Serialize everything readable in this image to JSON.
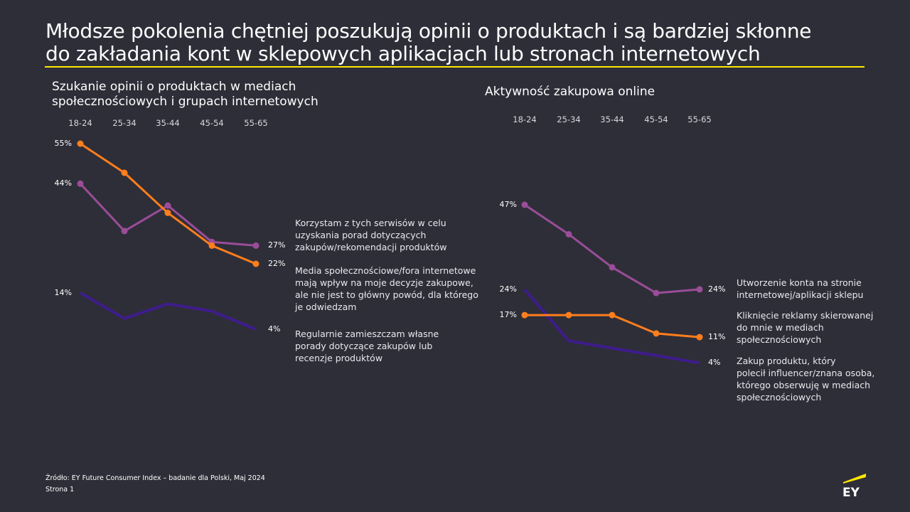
{
  "header": {
    "title_line1": "Młodsze pokolenia chętniej poszukują opinii o produktach i są bardziej skłonne",
    "title_line2": "do zakładania kont w sklepowych aplikacjach lub stronach internetowych"
  },
  "colors": {
    "background": "#2e2e38",
    "accent_yellow": "#ffe600",
    "orange": "#ff7e1d",
    "purple": "#9a4d98",
    "dark_purple": "#3e1c8c"
  },
  "chart_data": [
    {
      "type": "line",
      "title_line1": "Szukanie opinii o produktach w mediach",
      "title_line2": "społecznościowych i grupach internetowych",
      "categories": [
        "18-24",
        "25-34",
        "35-44",
        "45-54",
        "55-65"
      ],
      "xlabel": "",
      "ylabel": "",
      "ylim": [
        0,
        60
      ],
      "grid": false,
      "series": [
        {
          "name": "Korzystam z tych serwisów w celu uzyskania porad dotyczących zakupów/rekomendacji produktów",
          "legend_lines": [
            "Korzystam z tych serwisów w celu",
            "uzyskania porad dotyczących",
            "zakupów/rekomendacji produktów"
          ],
          "color_key": "purple",
          "markers": true,
          "values": [
            44,
            31,
            38,
            28,
            27
          ],
          "start_label": "44%",
          "end_label": "27%"
        },
        {
          "name": "Media społecznościowe/fora internetowe mają wpływ na moje decyzje zakupowe, ale nie jest to główny powód, dla którego je odwiedzam",
          "legend_lines": [
            "Media społecznościowe/fora internetowe",
            "mają wpływ na moje decyzje zakupowe,",
            "ale nie jest to główny powód, dla którego",
            "je odwiedzam"
          ],
          "color_key": "orange",
          "markers": true,
          "values": [
            55,
            47,
            36,
            27,
            22
          ],
          "start_label": "55%",
          "end_label": "22%"
        },
        {
          "name": "Regularnie zamieszczam własne porady dotyczące zakupów lub recenzje produktów",
          "legend_lines": [
            "Regularnie zamieszczam własne",
            "porady dotyczące zakupów lub",
            "recenzje produktów"
          ],
          "color_key": "dark_purple",
          "markers": false,
          "values": [
            14,
            7,
            11,
            9,
            4
          ],
          "start_label": "14%",
          "end_label": "4%"
        }
      ]
    },
    {
      "type": "line",
      "title_line1": "Aktywność zakupowa online",
      "title_line2": "",
      "categories": [
        "18-24",
        "25-34",
        "35-44",
        "45-54",
        "55-65"
      ],
      "xlabel": "",
      "ylabel": "",
      "ylim": [
        0,
        60
      ],
      "grid": false,
      "series": [
        {
          "name": "Utworzenie konta na stronie internetowej/aplikacji sklepu",
          "legend_lines": [
            "Utworzenie konta na stronie",
            "internetowej/aplikacji sklepu"
          ],
          "color_key": "purple",
          "markers": true,
          "values": [
            47,
            39,
            30,
            23,
            24
          ],
          "start_label": "47%",
          "end_label": "24%"
        },
        {
          "name": "Kliknięcie reklamy skierowanej do mnie w mediach społecznościowych",
          "legend_lines": [
            "Kliknięcie reklamy skierowanej",
            "do mnie w mediach",
            "społecznościowych"
          ],
          "color_key": "orange",
          "markers": true,
          "values": [
            17,
            17,
            17,
            12,
            11
          ],
          "start_label": "17%",
          "end_label": "11%"
        },
        {
          "name": "Zakup produktu, który polecił influencer/znana osoba, którego obserwuję w mediach społecznościowych",
          "legend_lines": [
            "Zakup produktu, który",
            "polecił influencer/znana osoba,",
            "którego obserwuję w mediach",
            "społecznościowych"
          ],
          "color_key": "dark_purple",
          "markers": false,
          "values": [
            24,
            10,
            8,
            6,
            4
          ],
          "start_label": "24%",
          "end_label": "4%"
        }
      ]
    }
  ],
  "footer": {
    "source": "Źródło: EY Future Consumer Index – badanie dla Polski, Maj 2024",
    "page": "Strona 1"
  },
  "logo": {
    "text": "EY",
    "icon": "ey-logo-icon"
  }
}
